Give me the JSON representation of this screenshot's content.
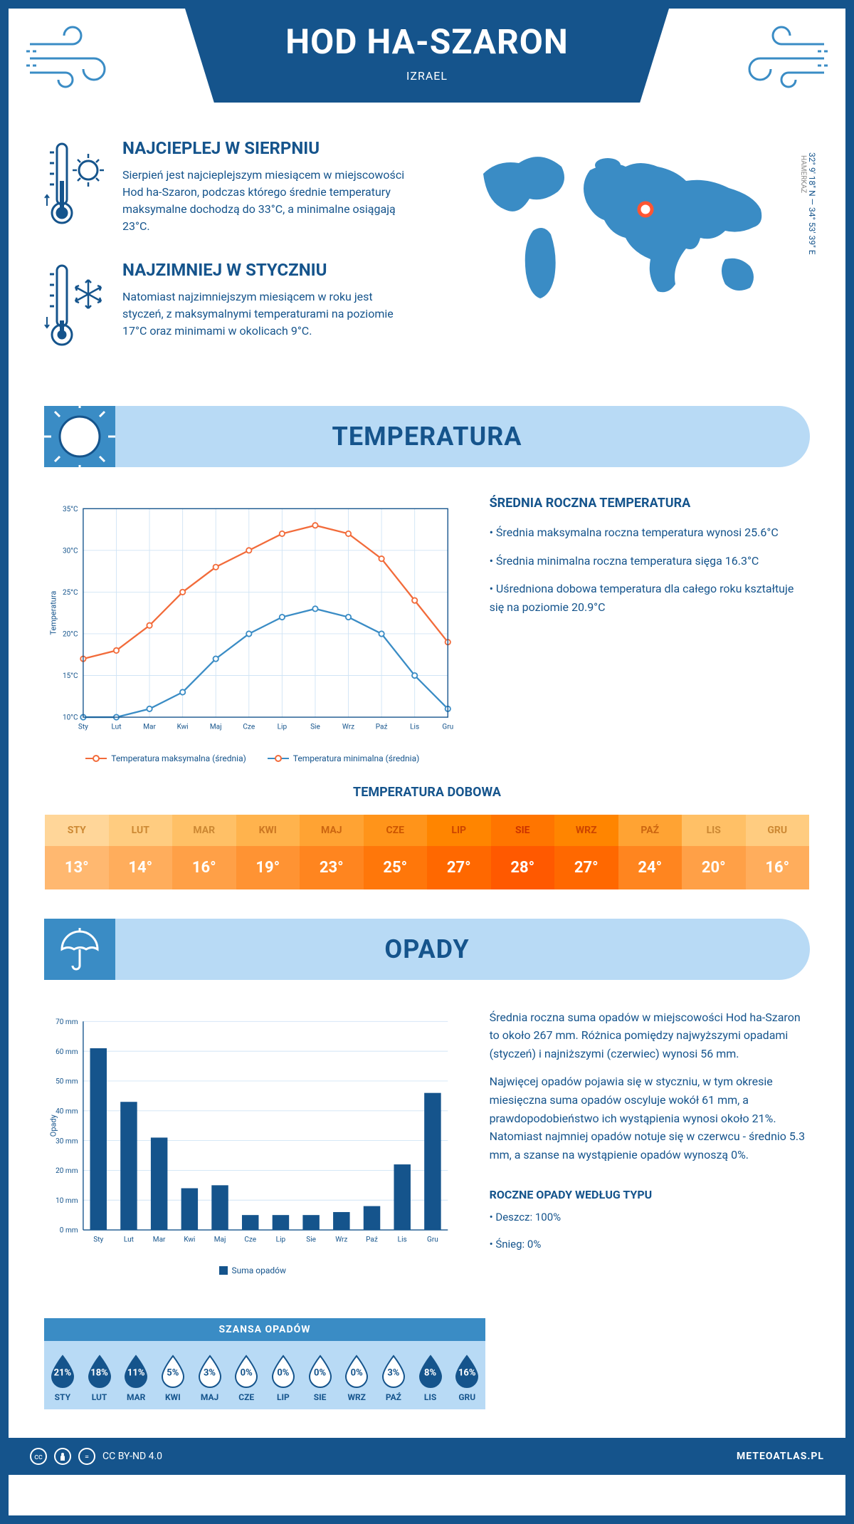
{
  "header": {
    "title": "HOD HA-SZARON",
    "subtitle": "IZRAEL"
  },
  "coords": {
    "lat": "32° 9' 18\" N",
    "sep": "—",
    "lon": "34° 53' 39\" E",
    "region": "HAMERKAZ"
  },
  "info": {
    "warm": {
      "title": "NAJCIEPLEJ W SIERPNIU",
      "text": "Sierpień jest najcieplejszym miesiącem w miejscowości Hod ha-Szaron, podczas którego średnie temperatury maksymalne dochodzą do 33°C, a minimalne osiągają 23°C."
    },
    "cold": {
      "title": "NAJZIMNIEJ W STYCZNIU",
      "text": "Natomiast najzimniejszym miesiącem w roku jest styczeń, z maksymalnymi temperaturami na poziomie 17°C oraz minimami w okolicach 9°C."
    }
  },
  "sections": {
    "temp": "TEMPERATURA",
    "precip": "OPADY"
  },
  "tempChart": {
    "type": "line",
    "months": [
      "Sty",
      "Lut",
      "Mar",
      "Kwi",
      "Maj",
      "Cze",
      "Lip",
      "Sie",
      "Wrz",
      "Paź",
      "Lis",
      "Gru"
    ],
    "ylabel": "Temperatura",
    "ylim": [
      10,
      35
    ],
    "ytick_step": 5,
    "ytick_labels": [
      "10°C",
      "15°C",
      "20°C",
      "25°C",
      "30°C",
      "35°C"
    ],
    "grid_color": "#d0e4f5",
    "series": {
      "max": {
        "label": "Temperatura maksymalna (średnia)",
        "color": "#f26b3a",
        "values": [
          17,
          18,
          21,
          25,
          28,
          30,
          32,
          33,
          32,
          29,
          24,
          19
        ]
      },
      "min": {
        "label": "Temperatura minimalna (średnia)",
        "color": "#3a8cc5",
        "values": [
          10,
          10,
          11,
          13,
          17,
          20,
          22,
          23,
          22,
          20,
          15,
          11
        ]
      }
    }
  },
  "tempInfo": {
    "title": "ŚREDNIA ROCZNA TEMPERATURA",
    "bullets": [
      "• Średnia maksymalna roczna temperatura wynosi 25.6°C",
      "• Średnia minimalna roczna temperatura sięga 16.3°C",
      "• Uśredniona dobowa temperatura dla całego roku kształtuje się na poziomie 20.9°C"
    ]
  },
  "dailyTemp": {
    "title": "TEMPERATURA DOBOWA",
    "months": [
      "STY",
      "LUT",
      "MAR",
      "KWI",
      "MAJ",
      "CZE",
      "LIP",
      "SIE",
      "WRZ",
      "PAŹ",
      "LIS",
      "GRU"
    ],
    "values": [
      "13°",
      "14°",
      "16°",
      "19°",
      "23°",
      "25°",
      "27°",
      "28°",
      "27°",
      "24°",
      "20°",
      "16°"
    ],
    "header_colors": [
      "#ffd699",
      "#ffcc80",
      "#ffc066",
      "#ffb34d",
      "#ffa333",
      "#ff941a",
      "#ff8500",
      "#ff7500",
      "#ff8500",
      "#ffa333",
      "#ffc066",
      "#ffcc80"
    ],
    "value_colors": [
      "#ffb870",
      "#ffad5c",
      "#ffa047",
      "#ff9333",
      "#ff851f",
      "#ff770a",
      "#ff6800",
      "#ff5900",
      "#ff6800",
      "#ff851f",
      "#ffa047",
      "#ffad5c"
    ],
    "text_colors": [
      "#cc8833",
      "#cc8833",
      "#cc8833",
      "#cc7722",
      "#cc6611",
      "#cc5500",
      "#cc4400",
      "#cc3300",
      "#cc4400",
      "#cc6611",
      "#cc8833",
      "#cc8833"
    ]
  },
  "precipChart": {
    "type": "bar",
    "months": [
      "Sty",
      "Lut",
      "Mar",
      "Kwi",
      "Maj",
      "Cze",
      "Lip",
      "Sie",
      "Wrz",
      "Paź",
      "Lis",
      "Gru"
    ],
    "ylabel": "Opady",
    "ylim": [
      0,
      70
    ],
    "ytick_step": 10,
    "ytick_labels": [
      "0 mm",
      "10 mm",
      "20 mm",
      "30 mm",
      "40 mm",
      "50 mm",
      "60 mm",
      "70 mm"
    ],
    "bar_color": "#15548c",
    "grid_color": "#d0e4f5",
    "legend_label": "Suma opadów",
    "values": [
      61,
      43,
      31,
      14,
      15,
      5,
      5,
      5,
      6,
      8,
      22,
      46
    ]
  },
  "precipInfo": {
    "p1": "Średnia roczna suma opadów w miejscowości Hod ha-Szaron to około 267 mm. Różnica pomiędzy najwyższymi opadami (styczeń) i najniższymi (czerwiec) wynosi 56 mm.",
    "p2": "Najwięcej opadów pojawia się w styczniu, w tym okresie miesięczna suma opadów oscyluje wokół 61 mm, a prawdopodobieństwo ich wystąpienia wynosi około 21%. Natomiast najmniej opadów notuje się w czerwcu - średnio 5.3 mm, a szanse na wystąpienie opadów wynoszą 0%."
  },
  "precipChance": {
    "title": "SZANSA OPADÓW",
    "months": [
      "STY",
      "LUT",
      "MAR",
      "KWI",
      "MAJ",
      "CZE",
      "LIP",
      "SIE",
      "WRZ",
      "PAŹ",
      "LIS",
      "GRU"
    ],
    "pct": [
      "21%",
      "18%",
      "11%",
      "5%",
      "3%",
      "0%",
      "0%",
      "0%",
      "0%",
      "3%",
      "8%",
      "16%"
    ],
    "filled": [
      true,
      true,
      true,
      false,
      false,
      false,
      false,
      false,
      false,
      false,
      true,
      true
    ],
    "fill_color": "#15548c",
    "empty_color": "#ffffff"
  },
  "precipType": {
    "title": "ROCZNE OPADY WEDŁUG TYPU",
    "rain": "• Deszcz: 100%",
    "snow": "• Śnieg: 0%"
  },
  "footer": {
    "license": "CC BY-ND 4.0",
    "site": "METEOATLAS.PL"
  },
  "colors": {
    "primary": "#15548c",
    "secondary": "#3a8cc5",
    "light": "#b8daf5",
    "orange": "#f26b3a",
    "marker": "#ff5533"
  }
}
